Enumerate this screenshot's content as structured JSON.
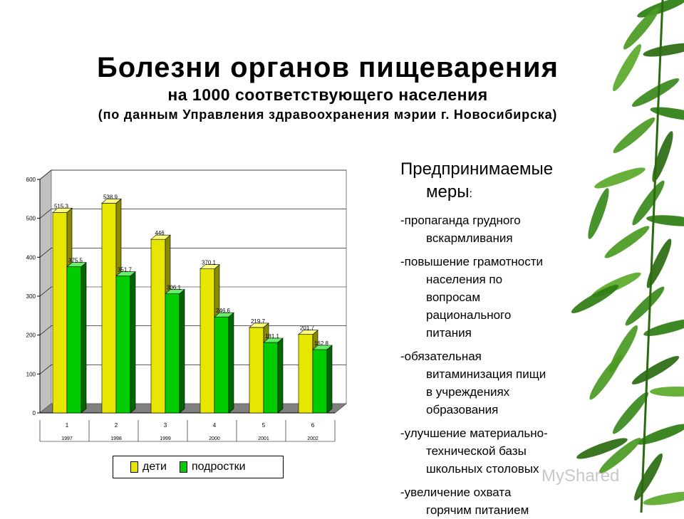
{
  "title": {
    "main": "Болезни органов пищеварения",
    "sub": "на 1000 соответствующего населения",
    "source": "(по данным Управления здравоохранения мэрии г. Новосибирска)"
  },
  "measures": {
    "heading_line1": "Предпринимаемые",
    "heading_line2": "меры",
    "heading_colon": ":",
    "items": [
      {
        "lines": [
          "-пропаганда грудного",
          "вскармливания"
        ]
      },
      {
        "lines": [
          "-повышение грамотности",
          "населения по",
          "вопросам",
          "рационального",
          "питания"
        ]
      },
      {
        "lines": [
          "-обязательная",
          "витаминизация пищи",
          "в учреждениях",
          "образования"
        ]
      },
      {
        "lines": [
          "-улучшение материально-",
          "технической базы",
          "школьных столовых"
        ]
      },
      {
        "lines": [
          "-увеличение охвата",
          "горячим питанием"
        ]
      }
    ]
  },
  "watermark": "MyShared",
  "colors": {
    "children": "#e6e600",
    "teens": "#00cc00",
    "leaf": "#3a8a1c"
  },
  "legend": {
    "children": "дети",
    "teens": "подростки"
  },
  "chart_data": {
    "type": "bar",
    "categories": [
      "1",
      "2",
      "3",
      "4",
      "5",
      "6"
    ],
    "subcategories": [
      "1997",
      "1998",
      "1999",
      "2000",
      "2001",
      "2002"
    ],
    "series": [
      {
        "name": "дети",
        "values": [
          515.3,
          538.9,
          446,
          370.1,
          219.7,
          201.7
        ],
        "labels": [
          "515.3",
          "538.9",
          "446",
          "370.1",
          "219.7",
          "201.7"
        ]
      },
      {
        "name": "подростки",
        "values": [
          375.5,
          351.7,
          306.1,
          246.6,
          181.1,
          162.8
        ],
        "labels": [
          "375.5",
          "351.7",
          "306.1",
          "246.6",
          "181.1",
          "162.8"
        ]
      }
    ],
    "ylim": [
      0,
      600
    ],
    "yticks": [
      0,
      100,
      200,
      300,
      400,
      500,
      600
    ],
    "grid": true,
    "legend": "bottom"
  }
}
